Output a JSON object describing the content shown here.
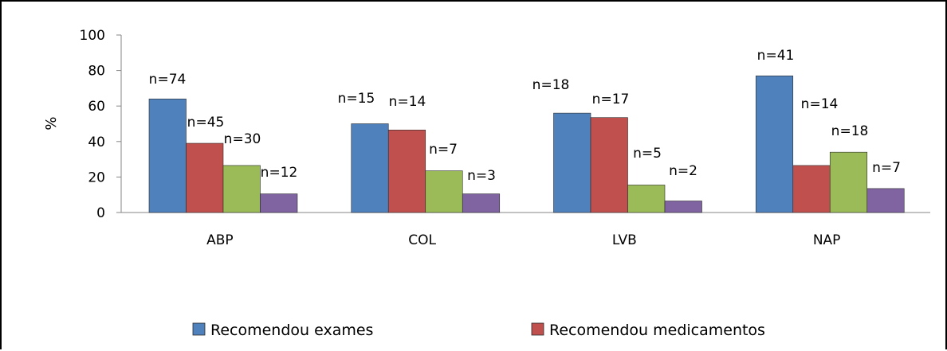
{
  "chart_data": {
    "type": "bar",
    "ylabel": "%",
    "ylim": [
      0,
      100
    ],
    "yticks": [
      0,
      20,
      40,
      60,
      80,
      100
    ],
    "grid": false,
    "legend_position": "bottom",
    "categories": [
      "ABP",
      "COL",
      "LVB",
      "NAP"
    ],
    "series": [
      {
        "name": "Recomendou exames",
        "color": "#4F81BD",
        "values": [
          64,
          50,
          56,
          77
        ],
        "labels": [
          "n=74",
          "n=15",
          "n=18",
          "n=41"
        ]
      },
      {
        "name": "Recomendou medicamentos",
        "color": "#C0504D",
        "values": [
          39,
          46.5,
          53.5,
          26.5
        ],
        "labels": [
          "n=45",
          "n=14",
          "n=17",
          "n=14"
        ]
      },
      {
        "color": "#9BBB59",
        "values": [
          26.5,
          23.5,
          15.5,
          34
        ],
        "labels": [
          "n=30",
          "n=7",
          "n=5",
          "n=18"
        ]
      },
      {
        "color": "#8064A2",
        "values": [
          10.5,
          10.5,
          6.5,
          13.5
        ],
        "labels": [
          "n=12",
          "n=3",
          "n=2",
          "n=7"
        ]
      }
    ]
  }
}
